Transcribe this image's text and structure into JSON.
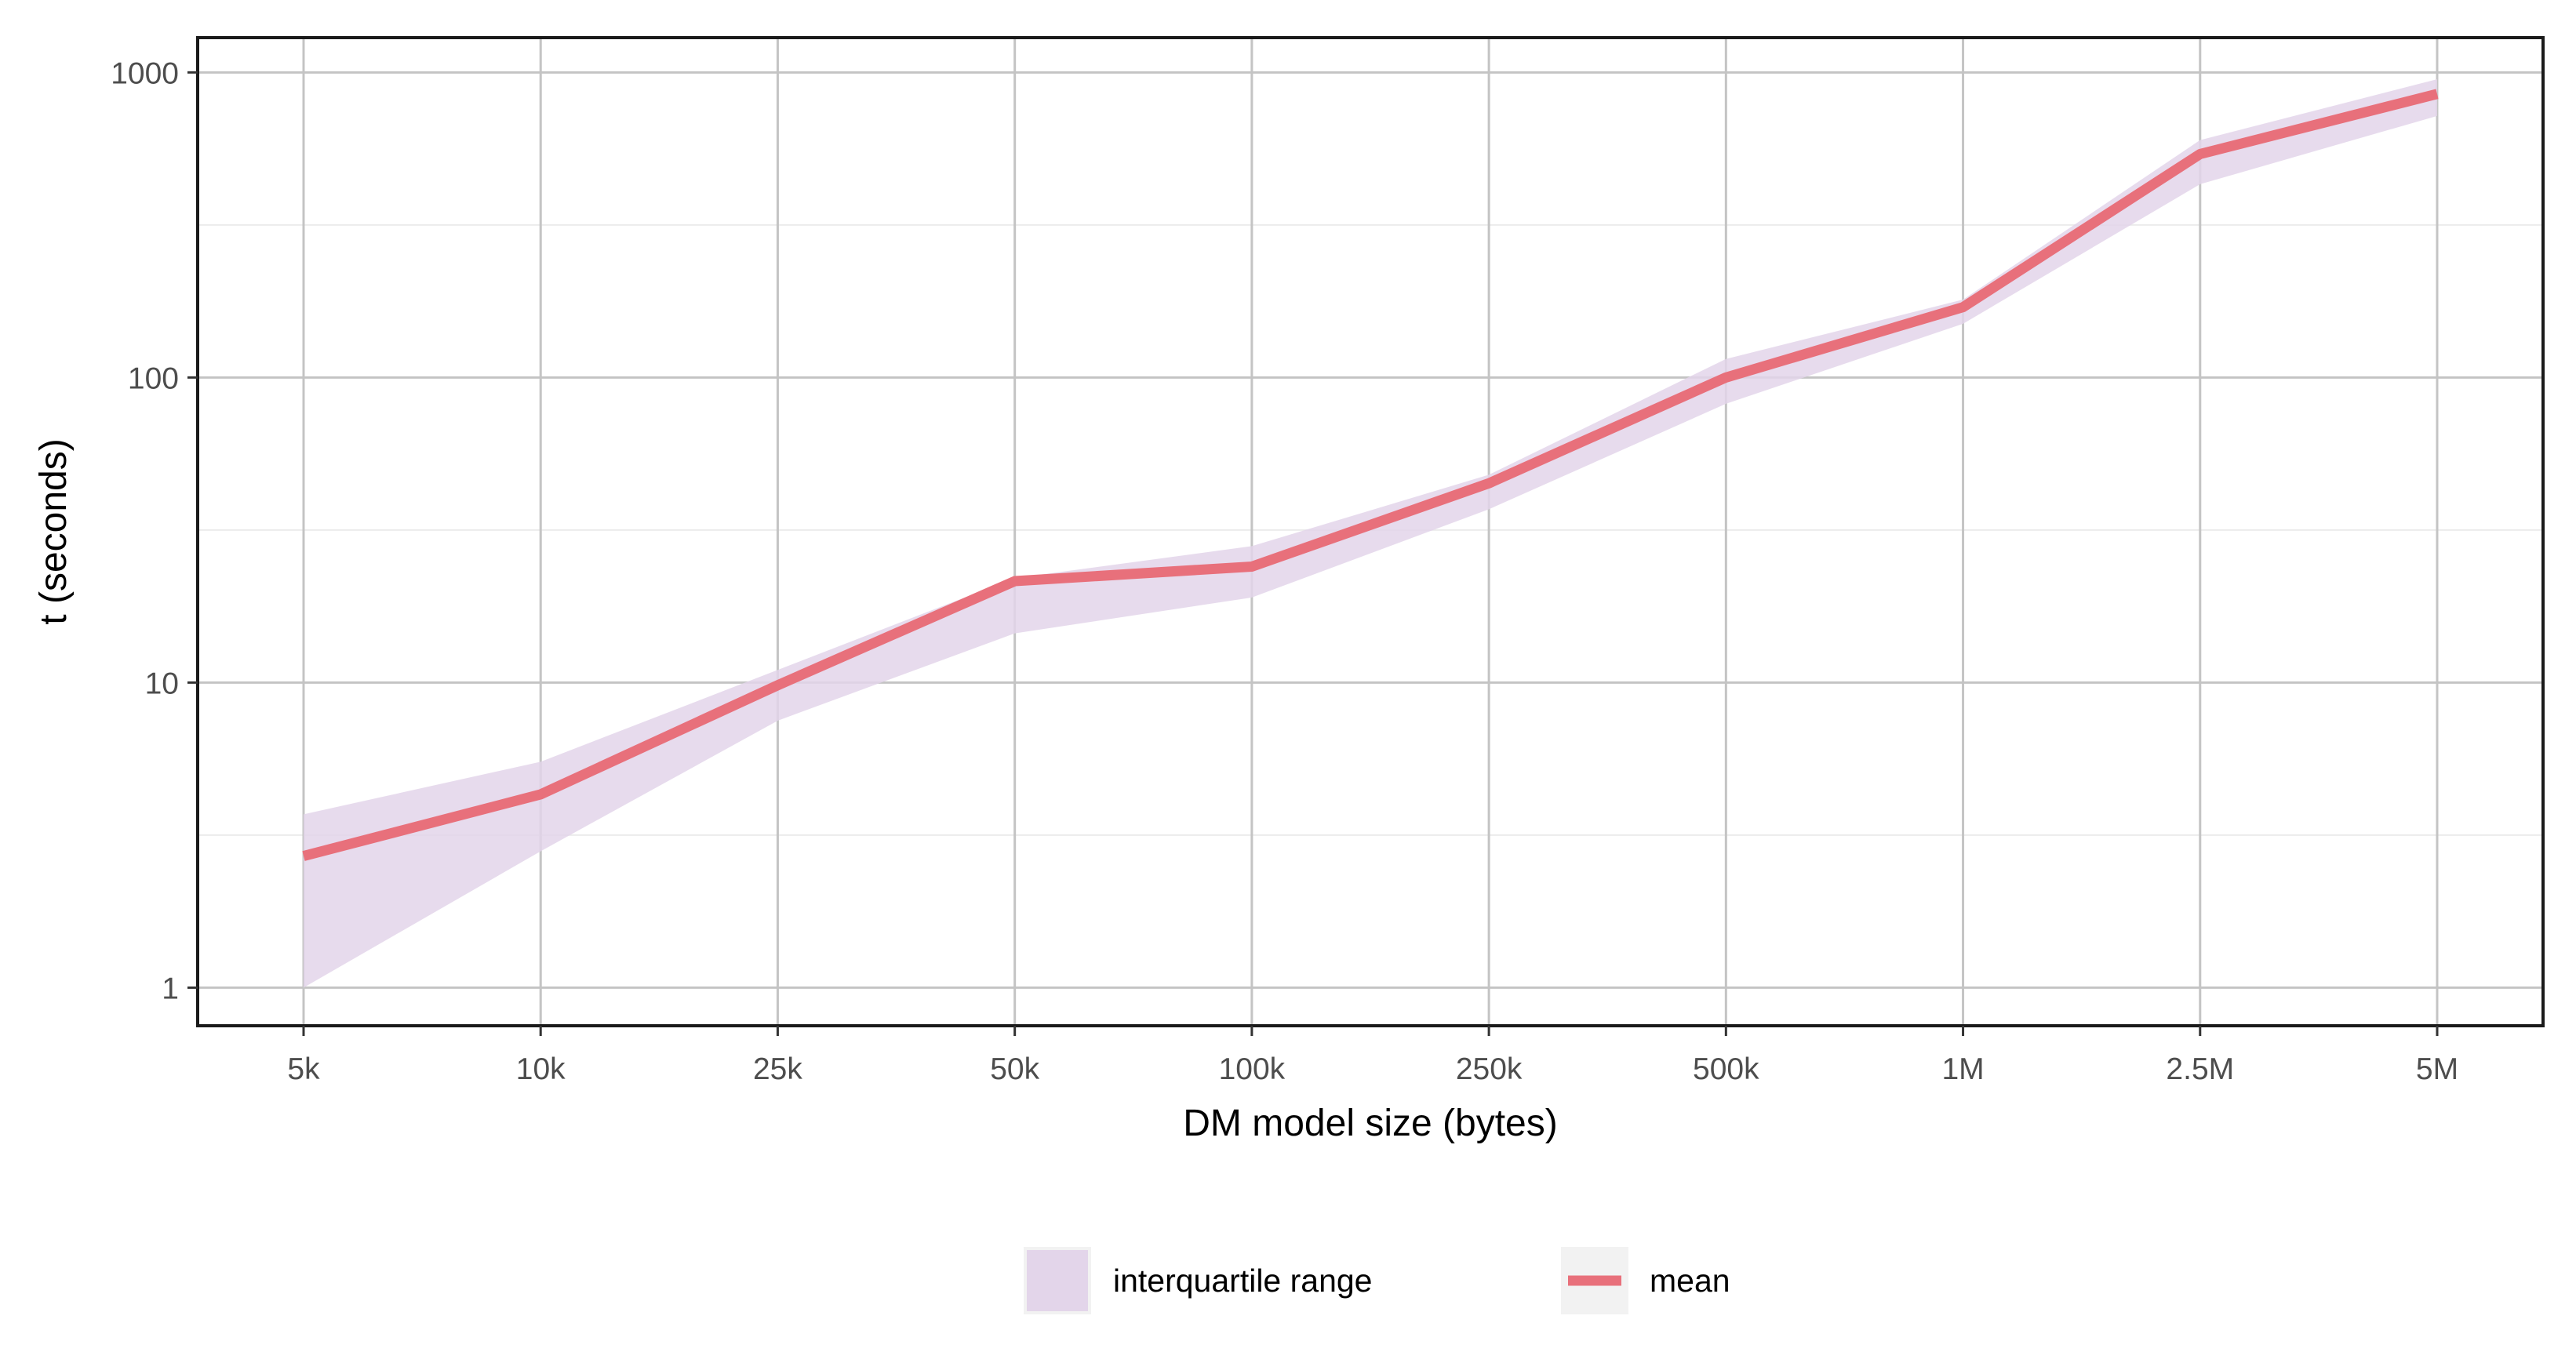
{
  "chart_data": {
    "type": "line",
    "title": "",
    "xlabel": "DM model size (bytes)",
    "ylabel": "t (seconds)",
    "y_scale": "log",
    "ylim": [
      0.75,
      1300
    ],
    "y_ticks": [
      1,
      10,
      100,
      1000
    ],
    "y_tick_labels": [
      "1",
      "10",
      "100",
      "1000"
    ],
    "categories": [
      "5k",
      "10k",
      "25k",
      "50k",
      "100k",
      "250k",
      "500k",
      "1M",
      "2.5M",
      "5M"
    ],
    "grid": true,
    "legend_position": "bottom",
    "series": [
      {
        "name": "mean",
        "color": "#e8707b",
        "values": [
          2.7,
          4.3,
          9.8,
          21.5,
          24,
          45,
          100,
          170,
          540,
          850
        ]
      }
    ],
    "band": {
      "name": "interquartile range",
      "color": "#e3d5ea",
      "lower": [
        1.0,
        2.8,
        7.5,
        14.5,
        19,
        37,
        82,
        150,
        430,
        720
      ],
      "upper": [
        3.7,
        5.5,
        11,
        22,
        28,
        48,
        115,
        180,
        600,
        950
      ]
    }
  }
}
